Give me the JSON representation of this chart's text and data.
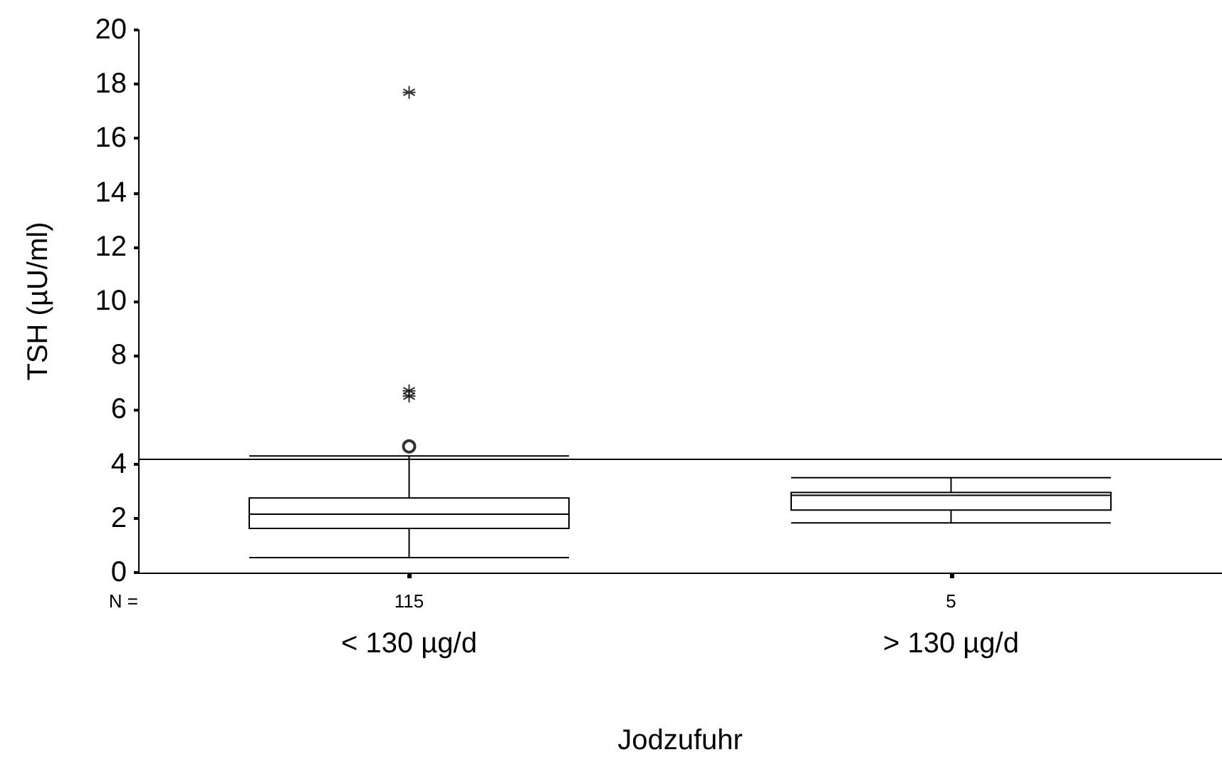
{
  "chart_data": {
    "type": "box",
    "xlabel": "Jodzufuhr",
    "ylabel": "TSH (µU/ml)",
    "categories": [
      "< 130 µg/d",
      "> 130 µg/d"
    ],
    "boxes": [
      {
        "low": 0.55,
        "q1": 1.63,
        "median": 2.15,
        "q3": 2.75,
        "high": 4.3,
        "outliers": [
          4.65
        ]
      },
      {
        "low": 1.83,
        "q1": 2.3,
        "median": 2.85,
        "q3": 2.95,
        "high": 3.5
      }
    ],
    "color": "#000000",
    "series": [
      {
        "type": "scatter",
        "marker": "cross",
        "color": "#000000",
        "x": [
          "< 130 µg/d",
          "< 130 µg/d",
          "< 130 µg/d"
        ],
        "values": [
          17.7,
          6.7,
          6.5
        ]
      }
    ],
    "ylim": [
      0,
      20
    ],
    "yticks": [
      0,
      2,
      4,
      6,
      8,
      10,
      12,
      14,
      16,
      18,
      20
    ],
    "ref_lines": [
      {
        "axis": "y",
        "value": 4.2,
        "color": "#000000"
      }
    ],
    "annotations": [
      "N =",
      "115",
      "5"
    ],
    "grid": false
  }
}
